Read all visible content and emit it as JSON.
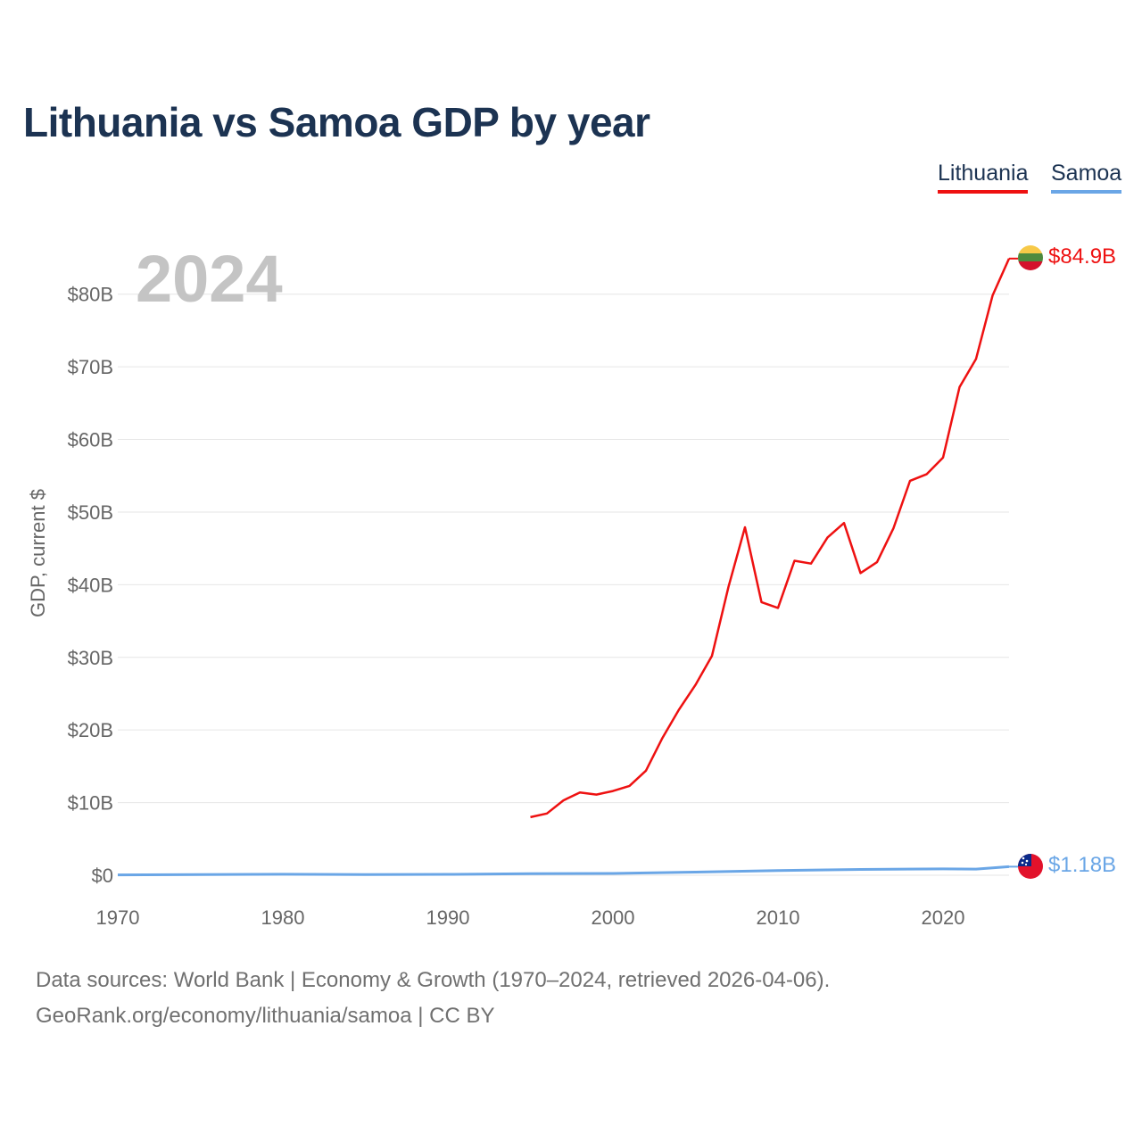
{
  "title": "Lithuania vs Samoa GDP by year",
  "legend": {
    "lithuania": "Lithuania",
    "samoa": "Samoa"
  },
  "year_label": "2024",
  "sources": {
    "line1": "Data sources: World Bank | Economy & Growth (1970–2024, retrieved 2026-04-06).",
    "line2": "GeoRank.org/economy/lithuania/samoa | CC BY"
  },
  "colors": {
    "lithuania": "#ee1111",
    "samoa": "#6aa6e6",
    "grid": "#e6e6e6",
    "title": "#1c3352"
  },
  "chart_data": {
    "type": "line",
    "title": "Lithuania vs Samoa GDP by year",
    "ylabel": "GDP, current $",
    "xlabel": "",
    "xlim": [
      1970,
      2024
    ],
    "ylim": [
      0,
      85
    ],
    "y_unit": "billions USD",
    "x_ticks": [
      1970,
      1980,
      1990,
      2000,
      2010,
      2020
    ],
    "x_tick_labels": [
      "1970",
      "1980",
      "1990",
      "2000",
      "2010",
      "2020"
    ],
    "y_ticks": [
      0,
      10,
      20,
      30,
      40,
      50,
      60,
      70,
      80
    ],
    "y_tick_labels": [
      "$0",
      "$10B",
      "$20B",
      "$30B",
      "$40B",
      "$50B",
      "$60B",
      "$70B",
      "$80B"
    ],
    "series": [
      {
        "name": "Lithuania",
        "end_label": "$84.9B",
        "x": [
          1995,
          1996,
          1997,
          1998,
          1999,
          2000,
          2001,
          2002,
          2003,
          2004,
          2005,
          2006,
          2007,
          2008,
          2009,
          2010,
          2011,
          2012,
          2013,
          2014,
          2015,
          2016,
          2017,
          2018,
          2019,
          2020,
          2021,
          2022,
          2023,
          2024
        ],
        "values": [
          8.0,
          8.5,
          10.3,
          11.4,
          11.1,
          11.6,
          12.3,
          14.4,
          18.9,
          22.8,
          26.2,
          30.2,
          39.7,
          47.9,
          37.6,
          36.8,
          43.3,
          42.9,
          46.5,
          48.5,
          41.6,
          43.1,
          47.8,
          54.3,
          55.2,
          57.5,
          67.2,
          71.1,
          79.8,
          84.9
        ]
      },
      {
        "name": "Samoa",
        "end_label": "$1.18B",
        "x": [
          1970,
          1975,
          1980,
          1985,
          1990,
          1995,
          2000,
          2005,
          2010,
          2015,
          2020,
          2022,
          2024
        ],
        "values": [
          0.05,
          0.08,
          0.13,
          0.09,
          0.12,
          0.22,
          0.25,
          0.43,
          0.64,
          0.8,
          0.87,
          0.85,
          1.18
        ]
      }
    ]
  }
}
